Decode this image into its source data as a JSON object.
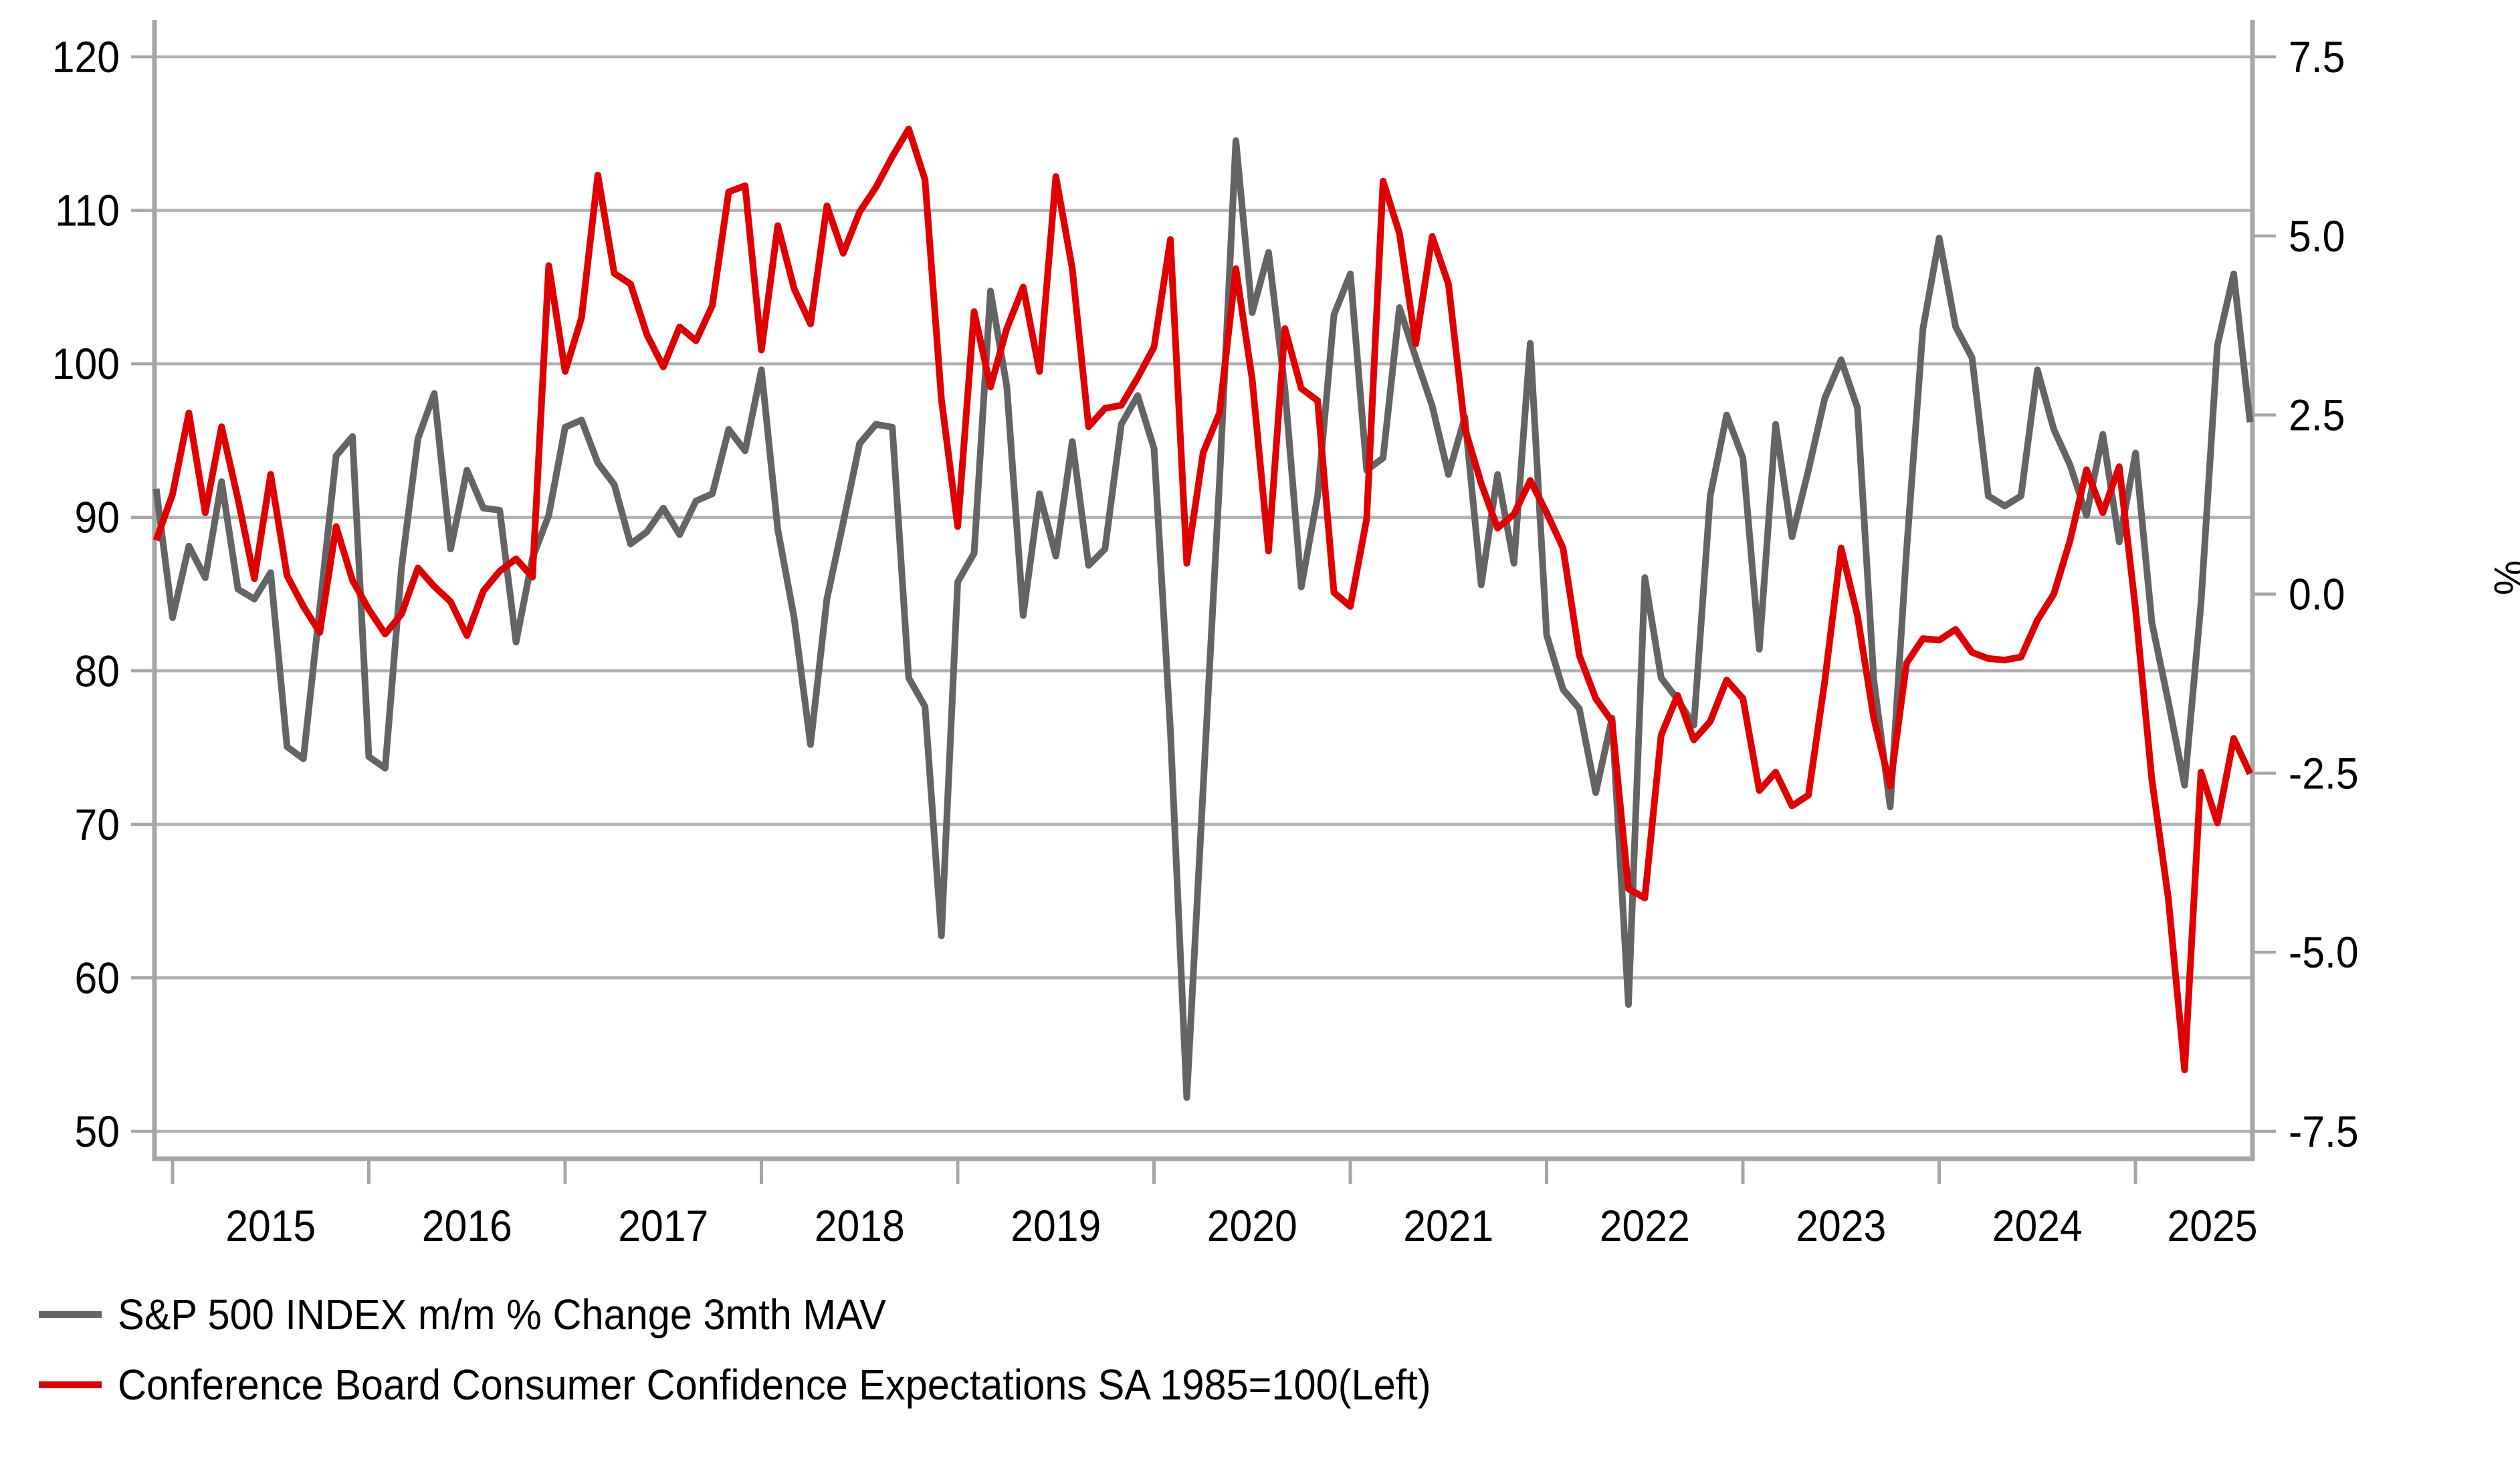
{
  "chart_data": {
    "type": "line",
    "title": "",
    "frequency": "monthly",
    "x_start": "2014-12",
    "x_end": "2025-08",
    "x_tick_labels": [
      "2015",
      "2016",
      "2017",
      "2018",
      "2019",
      "2020",
      "2021",
      "2022",
      "2023",
      "2024",
      "2025"
    ],
    "grid": "horizontal",
    "legend_position": "bottom-left",
    "left_axis": {
      "ticks": [
        120,
        110,
        100,
        90,
        80,
        70,
        60,
        50
      ],
      "range_top": 122.4,
      "range_bottom": 48.2,
      "applies_to": "Conference Board Consumer Confidence Expectations"
    },
    "right_axis": {
      "title": "%",
      "tick_labels": [
        "7.5",
        "5.0",
        "2.5",
        "0.0",
        "-2.5",
        "-5.0",
        "-7.5"
      ],
      "tick_values": [
        7.5,
        5.0,
        2.5,
        0.0,
        -2.5,
        -5.0,
        -7.5
      ],
      "alignment": "0% aligned with left value 85; 7.5% with 120; -7.5% with 50",
      "applies_to": "S&P 500 INDEX m/m % Change 3mth MAV"
    },
    "colors": {
      "sp500": "#646464",
      "confidence": "#e00000",
      "gridline": "#b2b2b2",
      "axis": "#a6a6a6",
      "text": "#000000"
    },
    "series": [
      {
        "name": "S&P 500 INDEX m/m % Change 3mth MAV",
        "axis": "right",
        "color_key": "sp500",
        "values": [
          1.47,
          -0.33,
          0.67,
          0.23,
          1.57,
          0.07,
          -0.07,
          0.3,
          -2.13,
          -2.3,
          -0.2,
          1.93,
          2.2,
          -2.27,
          -2.43,
          0.37,
          2.17,
          2.8,
          0.63,
          1.73,
          1.2,
          1.17,
          -0.67,
          0.5,
          1.1,
          2.33,
          2.43,
          1.83,
          1.53,
          0.7,
          0.87,
          1.2,
          0.83,
          1.3,
          1.4,
          2.3,
          2.0,
          3.13,
          0.9,
          -0.33,
          -2.1,
          -0.07,
          1.0,
          2.1,
          2.37,
          2.33,
          -1.17,
          -1.57,
          -4.77,
          0.17,
          0.57,
          4.23,
          2.9,
          -0.3,
          1.4,
          0.53,
          2.13,
          0.4,
          0.63,
          2.37,
          2.77,
          2.03,
          -1.9,
          -7.03,
          -2.73,
          1.57,
          6.33,
          3.93,
          4.77,
          2.87,
          0.1,
          1.37,
          3.9,
          4.47,
          1.73,
          1.9,
          4.0,
          3.3,
          2.63,
          1.67,
          2.47,
          0.13,
          1.67,
          0.43,
          3.5,
          -0.57,
          -1.33,
          -1.6,
          -2.77,
          -1.73,
          -5.73,
          0.23,
          -1.17,
          -1.47,
          -1.83,
          1.37,
          2.5,
          1.9,
          -0.77,
          2.37,
          0.8,
          1.73,
          2.73,
          3.27,
          2.6,
          -1.2,
          -2.97,
          0.6,
          3.7,
          4.97,
          3.73,
          3.3,
          1.37,
          1.23,
          1.37,
          3.13,
          2.3,
          1.8,
          1.1,
          2.23,
          0.73,
          1.97,
          -0.4,
          -1.5,
          -2.67,
          -0.13,
          3.47,
          4.47,
          2.4
        ]
      },
      {
        "name": "Conference Board Consumer Confidence Expectations SA 1985=100(Left)",
        "axis": "left",
        "color_key": "confidence",
        "values": [
          88.5,
          91.5,
          96.8,
          90.3,
          95.9,
          91.2,
          86.0,
          92.8,
          86.2,
          84.2,
          82.5,
          89.4,
          85.9,
          84.0,
          82.4,
          83.7,
          86.7,
          85.5,
          84.5,
          82.3,
          85.2,
          86.5,
          87.3,
          86.1,
          106.4,
          99.5,
          103.0,
          112.3,
          105.9,
          105.2,
          101.9,
          99.8,
          102.4,
          101.5,
          103.8,
          111.2,
          111.6,
          100.9,
          109.0,
          104.9,
          102.6,
          110.3,
          107.2,
          109.9,
          111.5,
          113.5,
          115.3,
          112.0,
          97.7,
          89.4,
          103.4,
          98.5,
          102.3,
          105.0,
          99.5,
          112.2,
          106.2,
          95.9,
          97.1,
          97.3,
          99.1,
          101.1,
          108.1,
          87.0,
          94.2,
          96.8,
          106.2,
          99.0,
          87.8,
          102.3,
          98.4,
          97.6,
          85.1,
          84.2,
          89.9,
          111.9,
          108.5,
          101.3,
          108.3,
          105.2,
          95.8,
          92.2,
          89.3,
          90.2,
          92.4,
          90.3,
          88.0,
          81.0,
          78.2,
          76.7,
          65.8,
          65.2,
          75.8,
          78.4,
          75.5,
          76.7,
          79.4,
          78.2,
          72.2,
          73.4,
          71.2,
          71.9,
          79.3,
          88.0,
          83.6,
          76.9,
          72.5,
          80.5,
          82.1,
          82.0,
          82.7,
          81.2,
          80.8,
          80.7,
          80.9,
          83.3,
          85.0,
          88.5,
          93.1,
          90.3,
          93.3,
          84.0,
          72.9,
          65.2,
          54.0,
          73.4,
          70.1,
          75.6,
          73.3
        ]
      }
    ]
  }
}
